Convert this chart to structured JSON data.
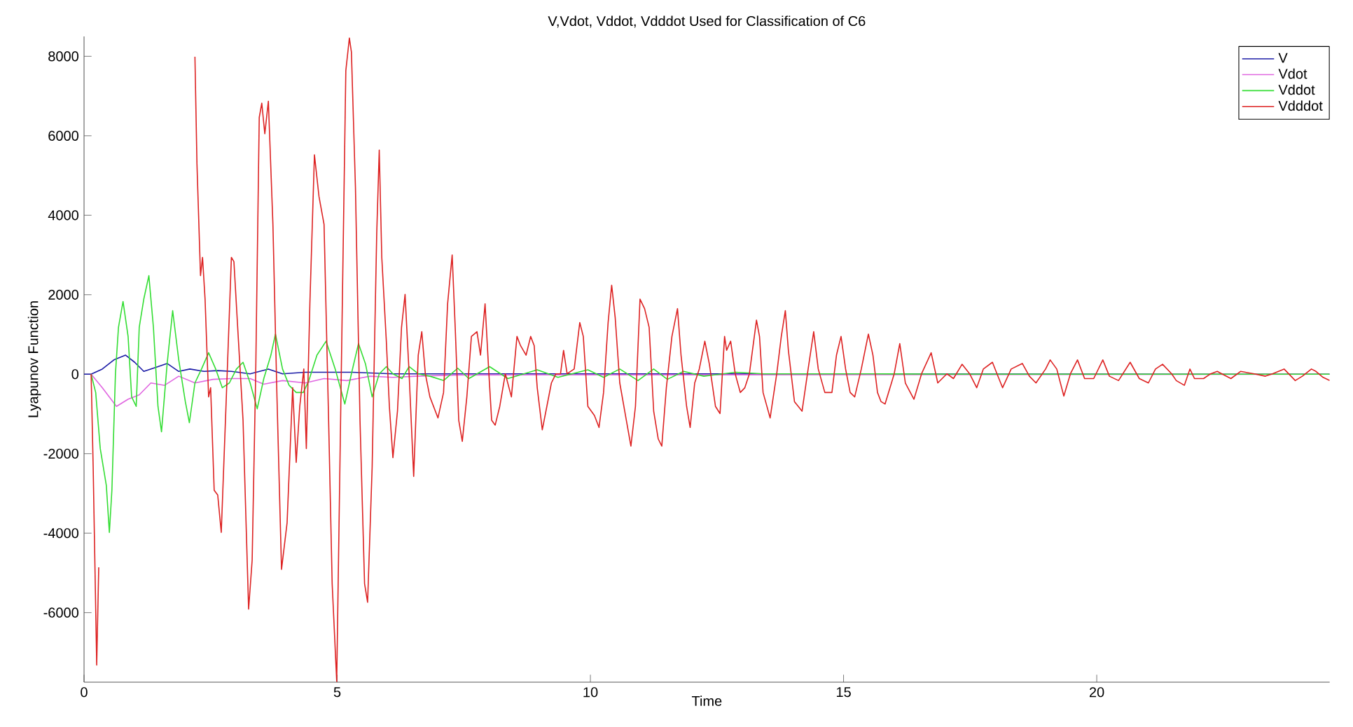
{
  "chart_data": {
    "type": "line",
    "title": "V,Vdot, Vddot, Vdddot Used for Classification of C6",
    "xlabel": "Time",
    "ylabel": "Lyapunov Function",
    "xlim": [
      0,
      24.6
    ],
    "ylim": [
      -7750,
      8500
    ],
    "xticks": [
      0,
      5,
      10,
      15,
      20
    ],
    "yticks": [
      -6000,
      -4000,
      -2000,
      0,
      2000,
      4000,
      6000,
      8000
    ],
    "legend": "top right",
    "grid": false,
    "marker": "none",
    "line_style": "solid",
    "series": [
      {
        "name": "V",
        "color": "#1a1aa6",
        "x": [
          0,
          0.14,
          0.36,
          0.59,
          0.82,
          1.0,
          1.18,
          1.46,
          1.64,
          1.87,
          2.09,
          2.37,
          2.64,
          2.91,
          3.28,
          3.64,
          3.92,
          4.37,
          5.28,
          6.1,
          24.6
        ],
        "values": [
          0,
          0,
          130,
          360,
          480,
          300,
          70,
          190,
          270,
          70,
          130,
          70,
          90,
          70,
          10,
          130,
          10,
          50,
          50,
          10,
          0
        ]
      },
      {
        "name": "Vdot",
        "color": "#e066e0",
        "x": [
          0.14,
          0.36,
          0.64,
          0.87,
          1.09,
          1.32,
          1.59,
          1.87,
          2.19,
          2.55,
          2.91,
          3.28,
          3.55,
          3.92,
          4.37,
          4.74,
          5.19,
          5.65,
          6.1,
          6.56,
          7.38,
          24.6
        ],
        "values": [
          0,
          -340,
          -810,
          -630,
          -520,
          -220,
          -280,
          -50,
          -220,
          -130,
          -110,
          -110,
          -250,
          -160,
          -220,
          -110,
          -160,
          -50,
          -80,
          -50,
          -20,
          0
        ]
      },
      {
        "name": "Vddot",
        "color": "#33dd33",
        "x": [
          0.14,
          0.23,
          0.32,
          0.44,
          0.5,
          0.55,
          0.62,
          0.68,
          0.77,
          0.87,
          0.94,
          1.03,
          1.09,
          1.18,
          1.28,
          1.37,
          1.46,
          1.53,
          1.64,
          1.75,
          1.87,
          2.0,
          2.08,
          2.19,
          2.32,
          2.46,
          2.6,
          2.73,
          2.87,
          3.01,
          3.14,
          3.28,
          3.42,
          3.55,
          3.69,
          3.78,
          3.92,
          4.05,
          4.19,
          4.33,
          4.44,
          4.6,
          4.78,
          4.96,
          5.15,
          5.28,
          5.42,
          5.56,
          5.69,
          5.83,
          5.97,
          6.1,
          6.28,
          6.42,
          6.6,
          6.83,
          7.1,
          7.38,
          7.6,
          8.01,
          8.37,
          8.95,
          9.36,
          9.95,
          10.26,
          10.58,
          10.94,
          11.25,
          11.52,
          11.84,
          12.24,
          12.87,
          13.41,
          14.05,
          15.58,
          17.0,
          24.6
        ],
        "values": [
          0,
          -460,
          -1870,
          -2800,
          -3980,
          -2920,
          10,
          1180,
          1830,
          950,
          -570,
          -810,
          1180,
          1890,
          2480,
          1180,
          -810,
          -1450,
          250,
          1600,
          360,
          -690,
          -1220,
          -220,
          130,
          540,
          130,
          -340,
          -220,
          130,
          300,
          -220,
          -870,
          -110,
          480,
          1010,
          130,
          -280,
          -460,
          -460,
          -160,
          480,
          830,
          130,
          -750,
          10,
          770,
          250,
          -570,
          10,
          190,
          10,
          -110,
          190,
          10,
          -50,
          -160,
          150,
          -110,
          190,
          -110,
          110,
          -80,
          110,
          -80,
          130,
          -160,
          130,
          -130,
          70,
          -50,
          50,
          10,
          10,
          10,
          0,
          0
        ]
      },
      {
        "name": "Vdddot",
        "color": "#dd2222",
        "x": [
          0.14,
          0.18,
          0.25,
          0.29,
          0.43,
          0.61,
          0.87,
          1.14,
          1.37,
          1.61,
          1.87,
          2.14,
          2.19,
          2.23,
          2.3,
          2.34,
          2.39,
          2.46,
          2.5,
          2.57,
          2.64,
          2.71,
          2.81,
          2.91,
          2.96,
          3.05,
          3.14,
          3.25,
          3.32,
          3.39,
          3.46,
          3.51,
          3.57,
          3.64,
          3.73,
          3.81,
          3.9,
          4.01,
          4.12,
          4.19,
          4.26,
          4.34,
          4.39,
          4.46,
          4.55,
          4.64,
          4.74,
          4.83,
          4.9,
          4.99,
          5.08,
          5.17,
          5.24,
          5.28,
          5.36,
          5.45,
          5.54,
          5.6,
          5.69,
          5.78,
          5.83,
          5.88,
          5.97,
          6.03,
          6.1,
          6.19,
          6.27,
          6.34,
          6.42,
          6.51,
          6.6,
          6.67,
          6.74,
          6.83,
          6.99,
          7.1,
          7.18,
          7.27,
          7.33,
          7.4,
          7.47,
          7.56,
          7.65,
          7.76,
          7.83,
          7.92,
          7.99,
          8.05,
          8.12,
          8.21,
          8.32,
          8.44,
          8.55,
          8.62,
          8.73,
          8.82,
          8.89,
          8.95,
          9.05,
          9.14,
          9.23,
          9.32,
          9.41,
          9.47,
          9.54,
          9.68,
          9.79,
          9.86,
          9.95,
          10.08,
          10.17,
          10.26,
          10.35,
          10.42,
          10.49,
          10.58,
          10.71,
          10.8,
          10.89,
          10.98,
          11.07,
          11.16,
          11.25,
          11.34,
          11.41,
          11.5,
          11.61,
          11.72,
          11.79,
          11.9,
          11.97,
          12.06,
          12.15,
          12.26,
          12.35,
          12.47,
          12.56,
          12.65,
          12.69,
          12.77,
          12.86,
          12.96,
          13.05,
          13.14,
          13.28,
          13.34,
          13.41,
          13.55,
          13.68,
          13.77,
          13.85,
          13.91,
          14.03,
          14.18,
          14.3,
          14.41,
          14.5,
          14.63,
          14.77,
          14.86,
          14.95,
          15.04,
          15.13,
          15.22,
          15.35,
          15.49,
          15.58,
          15.67,
          15.74,
          15.82,
          16.0,
          16.11,
          16.22,
          16.39,
          16.54,
          16.73,
          16.86,
          17.04,
          17.17,
          17.34,
          17.49,
          17.63,
          17.76,
          17.94,
          18.03,
          18.14,
          18.31,
          18.53,
          18.67,
          18.8,
          18.99,
          19.08,
          19.21,
          19.35,
          19.48,
          19.62,
          19.76,
          19.94,
          20.12,
          20.25,
          20.43,
          20.66,
          20.84,
          21.02,
          21.16,
          21.3,
          21.48,
          21.57,
          21.73,
          21.84,
          21.93,
          22.11,
          22.25,
          22.38,
          22.47,
          22.65,
          22.84,
          23.11,
          23.33,
          23.47,
          23.7,
          23.92,
          24.06,
          24.24,
          24.33,
          24.47,
          24.6
        ],
        "values": [
          0,
          -2330,
          -7320,
          -4860,
          null,
          null,
          null,
          null,
          null,
          null,
          null,
          null,
          7990,
          5290,
          2480,
          2940,
          1890,
          -570,
          -340,
          -2920,
          -3040,
          -3980,
          -570,
          2940,
          2830,
          830,
          -1160,
          -5910,
          -4680,
          10,
          6460,
          6820,
          6050,
          6870,
          3770,
          -570,
          -4910,
          -3740,
          -340,
          -2220,
          -810,
          130,
          -1870,
          1770,
          5520,
          4470,
          3770,
          -1160,
          -5270,
          -7730,
          10,
          7640,
          8460,
          8110,
          4700,
          -1160,
          -5270,
          -5740,
          -2330,
          3530,
          5640,
          2940,
          830,
          -810,
          -2100,
          -930,
          1180,
          2010,
          10,
          -2570,
          480,
          1070,
          10,
          -570,
          -1100,
          -460,
          1770,
          3000,
          1180,
          -1160,
          -1690,
          -570,
          950,
          1070,
          480,
          1770,
          130,
          -1160,
          -1280,
          -810,
          10,
          -570,
          950,
          720,
          480,
          950,
          720,
          -340,
          -1400,
          -810,
          -220,
          10,
          10,
          600,
          10,
          130,
          1300,
          950,
          -810,
          -1040,
          -1340,
          -460,
          1300,
          2240,
          1420,
          -220,
          -1160,
          -1810,
          -810,
          1890,
          1650,
          1180,
          -930,
          -1630,
          -1810,
          -340,
          950,
          1650,
          480,
          -810,
          -1340,
          -220,
          130,
          830,
          250,
          -810,
          -990,
          950,
          600,
          830,
          10,
          -460,
          -340,
          10,
          1360,
          950,
          -460,
          -1100,
          10,
          950,
          1600,
          600,
          -690,
          -930,
          130,
          1070,
          130,
          -460,
          -460,
          480,
          950,
          130,
          -460,
          -570,
          130,
          1010,
          480,
          -460,
          -690,
          -750,
          10,
          770,
          -220,
          -630,
          10,
          540,
          -220,
          10,
          -110,
          250,
          10,
          -340,
          130,
          300,
          10,
          -340,
          130,
          270,
          -50,
          -220,
          130,
          360,
          130,
          -550,
          10,
          360,
          -110,
          -110,
          360,
          -50,
          -160,
          300,
          -110,
          -220,
          130,
          250,
          10,
          -160,
          -280,
          130,
          -110,
          -110,
          10,
          70,
          10,
          -110,
          70,
          10,
          -50,
          10,
          130,
          -160,
          -50,
          130,
          70,
          -80,
          -160
        ]
      }
    ]
  }
}
